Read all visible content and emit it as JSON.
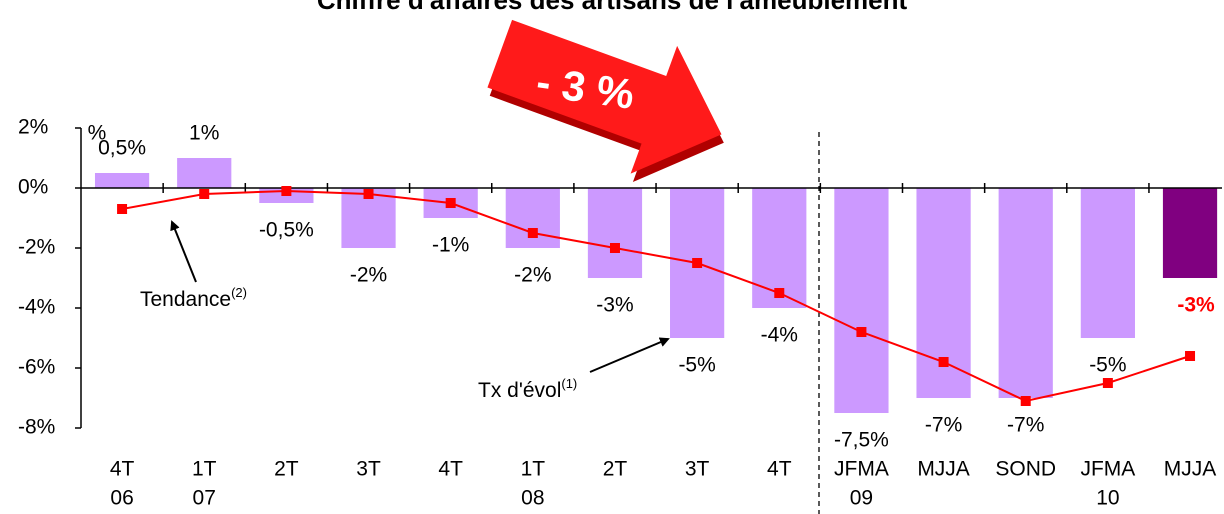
{
  "chart_data": {
    "type": "bar",
    "title": "Chiffre d'affaires des artisans de l'ameublement",
    "unit_label": "%",
    "categories": [
      "4T",
      "1T",
      "2T",
      "3T",
      "4T",
      "1T",
      "2T",
      "3T",
      "4T",
      "JFMA",
      "MJJA",
      "SOND",
      "JFMA",
      "MJJA"
    ],
    "year_labels": [
      "06",
      "07",
      null,
      null,
      null,
      "08",
      null,
      null,
      null,
      "09",
      null,
      null,
      "10",
      null
    ],
    "series": [
      {
        "name": "Tx d'évol",
        "name_sup": "(1)",
        "color": "#cc99ff",
        "highlight_color": "#800080",
        "values": [
          0.5,
          1,
          -0.5,
          -2,
          -1,
          -2,
          -3,
          -5,
          -4,
          -7.5,
          -7,
          -7,
          -5,
          -3
        ],
        "value_labels": [
          "0,5%",
          "1%",
          "-0,5%",
          "-2%",
          "-1%",
          "-2%",
          "-3%",
          "-5%",
          "-4%",
          "-7,5%",
          "-7%",
          "-7%",
          "-5%",
          "-3%"
        ]
      },
      {
        "name": "Tendance",
        "name_sup": "(2)",
        "color": "#ff0000",
        "type": "line",
        "values": [
          -0.7,
          -0.2,
          -0.1,
          -0.2,
          -0.5,
          -1.5,
          -2,
          -2.5,
          -3.5,
          -4.8,
          -5.8,
          -7.1,
          -6.5,
          -5.6
        ]
      }
    ],
    "callout": "- 3 %",
    "ylim": [
      -8,
      2
    ],
    "yticks": [
      {
        "value": -8,
        "label": "-8%"
      },
      {
        "value": -6,
        "label": "-6%"
      },
      {
        "value": -4,
        "label": "-4%"
      },
      {
        "value": -2,
        "label": "-2%"
      },
      {
        "value": 0,
        "label": "0%"
      },
      {
        "value": 2,
        "label": "2%"
      }
    ],
    "grid": false
  }
}
